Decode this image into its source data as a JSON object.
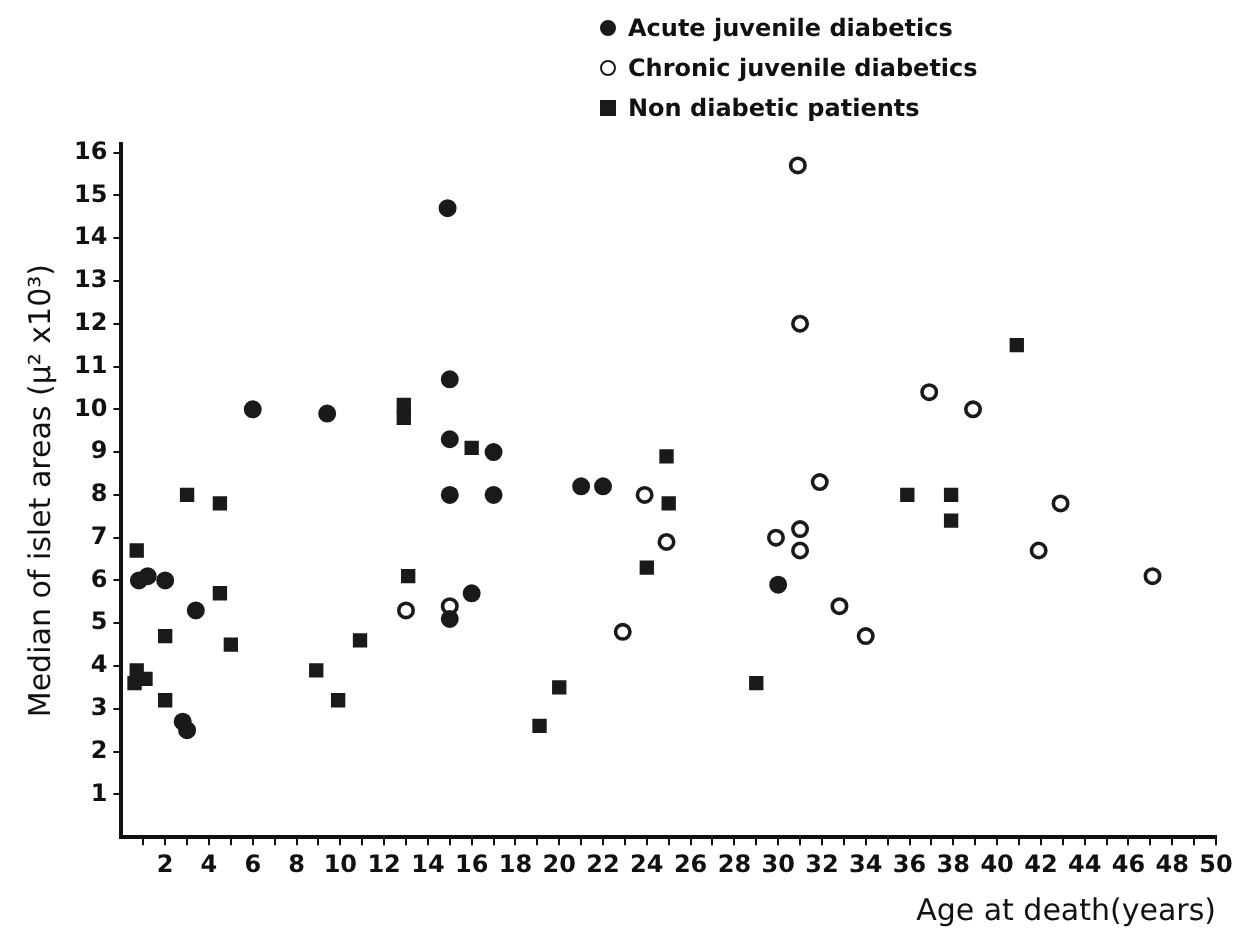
{
  "chart_data": {
    "type": "scatter",
    "xlabel": "Age at death(years)",
    "ylabel": "Median of islet areas (μ² x10³)",
    "xlim": [
      0,
      50
    ],
    "ylim": [
      0,
      16.2
    ],
    "xticks": [
      {
        "value": 1,
        "label": null
      },
      2,
      {
        "value": 3,
        "label": null
      },
      4,
      {
        "value": 5,
        "label": null
      },
      6,
      {
        "value": 7,
        "label": null
      },
      8,
      {
        "value": 9,
        "label": null
      },
      10,
      {
        "value": 11,
        "label": null
      },
      12,
      {
        "value": 13,
        "label": null
      },
      14,
      {
        "value": 15,
        "label": null
      },
      16,
      {
        "value": 17,
        "label": null
      },
      18,
      {
        "value": 19,
        "label": null
      },
      20,
      {
        "value": 21,
        "label": null
      },
      22,
      {
        "value": 23,
        "label": null
      },
      24,
      {
        "value": 25,
        "label": null
      },
      26,
      {
        "value": 27,
        "label": null
      },
      28,
      {
        "value": 29,
        "label": null
      },
      30,
      {
        "value": 31,
        "label": null
      },
      32,
      {
        "value": 33,
        "label": null
      },
      34,
      {
        "value": 35,
        "label": null
      },
      36,
      {
        "value": 37,
        "label": null
      },
      38,
      {
        "value": 39,
        "label": null
      },
      40,
      {
        "value": 41,
        "label": null
      },
      42,
      {
        "value": 43,
        "label": null
      },
      44,
      {
        "value": 45,
        "label": null
      },
      46,
      {
        "value": 47,
        "label": null
      },
      48,
      {
        "value": 49,
        "label": null
      },
      50
    ],
    "yticks": [
      1,
      2,
      3,
      4,
      5,
      6,
      7,
      8,
      9,
      10,
      11,
      12,
      13,
      14,
      15,
      16
    ],
    "grid": false,
    "legend": "top",
    "series": [
      {
        "name": "Acute juvenile diabetics",
        "color": "#1a1a1a",
        "marker": "circle",
        "x": [
          14.9,
          15,
          6,
          9.4,
          15,
          17,
          15,
          2,
          3.4,
          2.8,
          3,
          15,
          0.8,
          1.2,
          17,
          16,
          21,
          22,
          30
        ],
        "values": [
          14.7,
          10.7,
          10,
          9.9,
          9.3,
          9,
          8,
          6,
          5.3,
          2.7,
          2.5,
          5.1,
          6,
          6.1,
          8,
          5.7,
          8.2,
          8.2,
          5.9
        ]
      },
      {
        "name": "Chronic juvenile diabetics",
        "color": "#ffffff",
        "marker": "circle",
        "x": [
          13,
          15,
          23.9,
          24.9,
          22.9,
          29.9,
          30.9,
          31,
          36.9,
          38.9,
          31.9,
          42.9,
          31,
          31,
          41.9,
          47.1,
          32.8,
          34
        ],
        "values": [
          5.3,
          5.4,
          8,
          6.9,
          4.8,
          7,
          15.7,
          12,
          10.4,
          10,
          8.3,
          7.8,
          7.2,
          6.7,
          6.7,
          6.1,
          5.4,
          4.7
        ]
      },
      {
        "name": "Non diabetic patients",
        "color": "#1a1a1a",
        "marker": "square",
        "x": [
          0.7,
          3,
          4.5,
          4.5,
          2,
          5,
          0.7,
          0.6,
          1.1,
          2,
          8.9,
          9.9,
          10.9,
          12.9,
          12.9,
          13.1,
          16,
          24.9,
          25,
          24,
          20,
          19.1,
          29,
          40.9,
          35.9,
          37.9,
          37.9
        ],
        "values": [
          6.7,
          8,
          7.8,
          5.7,
          4.7,
          4.5,
          3.9,
          3.6,
          3.7,
          3.2,
          3.9,
          3.2,
          4.6,
          10.1,
          9.8,
          6.1,
          9.1,
          8.9,
          7.8,
          6.3,
          3.5,
          2.6,
          3.6,
          11.5,
          8,
          8,
          7.4
        ]
      }
    ]
  }
}
